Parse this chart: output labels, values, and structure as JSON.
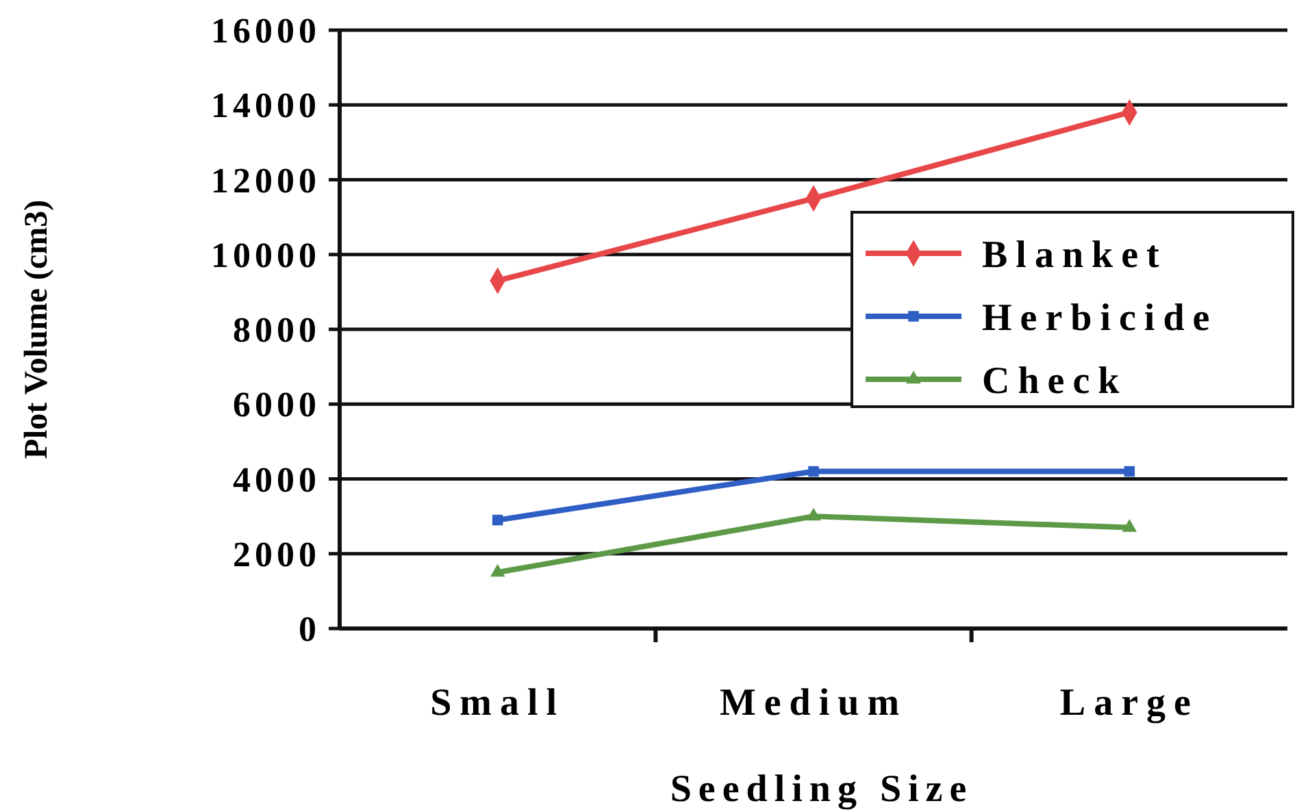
{
  "chart_data": {
    "type": "line",
    "xlabel": "Seedling Size",
    "ylabel": "Plot Volume (cm3)",
    "categories": [
      "Small",
      "Medium",
      "Large"
    ],
    "ylim": [
      0,
      16000
    ],
    "yticks": [
      0,
      2000,
      4000,
      6000,
      8000,
      10000,
      12000,
      14000,
      16000
    ],
    "grid": "y",
    "legend": "right",
    "series": [
      {
        "name": "Blanket",
        "color": "#e8474a",
        "marker": "diamond",
        "values": [
          9300,
          11500,
          13800
        ]
      },
      {
        "name": "Herbicide",
        "color": "#2f5fc4",
        "marker": "square",
        "values": [
          2900,
          4200,
          4200
        ]
      },
      {
        "name": "Check",
        "color": "#5c9a48",
        "marker": "triangle",
        "values": [
          1500,
          3000,
          2700
        ]
      }
    ]
  }
}
